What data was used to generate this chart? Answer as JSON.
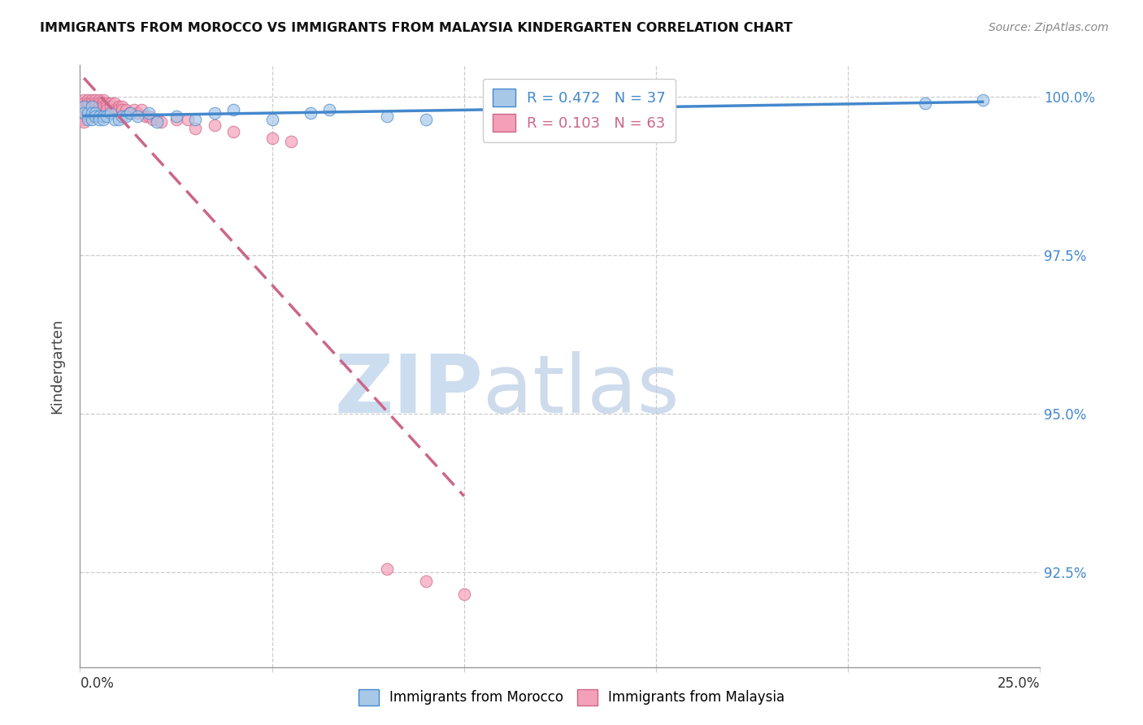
{
  "title": "IMMIGRANTS FROM MOROCCO VS IMMIGRANTS FROM MALAYSIA KINDERGARTEN CORRELATION CHART",
  "source": "Source: ZipAtlas.com",
  "ylabel": "Kindergarten",
  "ytick_labels": [
    "100.0%",
    "97.5%",
    "95.0%",
    "92.5%"
  ],
  "ytick_values": [
    1.0,
    0.975,
    0.95,
    0.925
  ],
  "xlim": [
    0.0,
    0.25
  ],
  "ylim": [
    0.91,
    1.005
  ],
  "legend_morocco": "R = 0.472   N = 37",
  "legend_malaysia": "R = 0.103   N = 63",
  "color_morocco": "#a8c8e8",
  "color_malaysia": "#f4a0b8",
  "line_color_morocco": "#4488cc",
  "line_color_malaysia": "#cc6688",
  "morocco_x": [
    0.001,
    0.001,
    0.002,
    0.002,
    0.003,
    0.003,
    0.003,
    0.004,
    0.004,
    0.005,
    0.005,
    0.006,
    0.006,
    0.007,
    0.008,
    0.009,
    0.01,
    0.011,
    0.012,
    0.013,
    0.015,
    0.018,
    0.02,
    0.025,
    0.03,
    0.035,
    0.04,
    0.05,
    0.06,
    0.065,
    0.08,
    0.09,
    0.11,
    0.13,
    0.15,
    0.22,
    0.235
  ],
  "morocco_y": [
    0.9985,
    0.9975,
    0.9975,
    0.9965,
    0.9985,
    0.9975,
    0.9965,
    0.9975,
    0.997,
    0.997,
    0.9965,
    0.997,
    0.9965,
    0.997,
    0.9975,
    0.9965,
    0.9965,
    0.997,
    0.997,
    0.9975,
    0.997,
    0.9975,
    0.996,
    0.997,
    0.9965,
    0.9975,
    0.998,
    0.9965,
    0.9975,
    0.998,
    0.997,
    0.9965,
    0.9985,
    0.9985,
    0.999,
    0.999,
    0.9995
  ],
  "malaysia_x": [
    0.001,
    0.001,
    0.001,
    0.001,
    0.001,
    0.001,
    0.001,
    0.001,
    0.002,
    0.002,
    0.002,
    0.002,
    0.002,
    0.002,
    0.003,
    0.003,
    0.003,
    0.003,
    0.003,
    0.003,
    0.004,
    0.004,
    0.004,
    0.004,
    0.005,
    0.005,
    0.005,
    0.005,
    0.005,
    0.006,
    0.006,
    0.006,
    0.007,
    0.007,
    0.007,
    0.008,
    0.008,
    0.009,
    0.009,
    0.01,
    0.01,
    0.011,
    0.011,
    0.012,
    0.013,
    0.014,
    0.015,
    0.016,
    0.017,
    0.018,
    0.019,
    0.02,
    0.021,
    0.025,
    0.028,
    0.03,
    0.035,
    0.04,
    0.05,
    0.055,
    0.08,
    0.09,
    0.1
  ],
  "malaysia_y": [
    0.9995,
    0.999,
    0.9985,
    0.998,
    0.9975,
    0.997,
    0.9965,
    0.996,
    0.9995,
    0.999,
    0.9985,
    0.998,
    0.9975,
    0.997,
    0.9995,
    0.999,
    0.9985,
    0.998,
    0.9975,
    0.997,
    0.9995,
    0.999,
    0.9985,
    0.998,
    0.9995,
    0.999,
    0.9985,
    0.998,
    0.9975,
    0.9995,
    0.999,
    0.9985,
    0.999,
    0.9985,
    0.998,
    0.999,
    0.9985,
    0.999,
    0.998,
    0.9985,
    0.998,
    0.9985,
    0.998,
    0.998,
    0.9975,
    0.998,
    0.9975,
    0.998,
    0.997,
    0.997,
    0.9965,
    0.9965,
    0.996,
    0.9965,
    0.9965,
    0.995,
    0.9955,
    0.9945,
    0.9935,
    0.993,
    0.9255,
    0.9235,
    0.9215
  ]
}
